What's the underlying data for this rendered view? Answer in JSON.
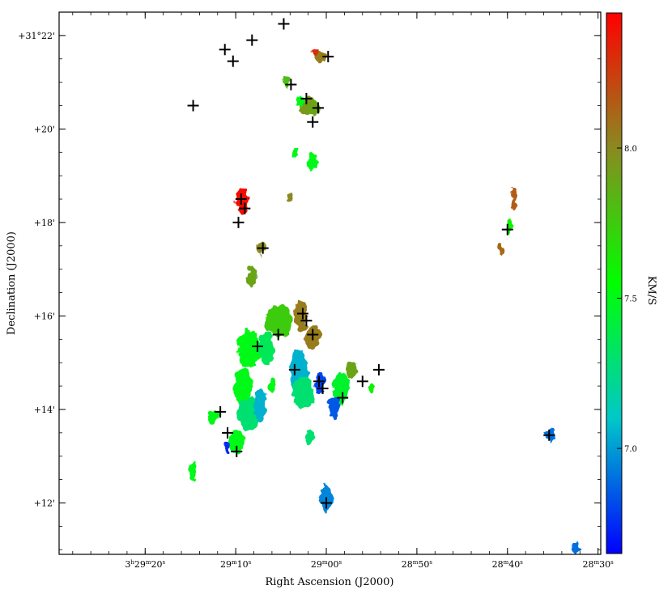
{
  "chart_data": {
    "type": "heatmap",
    "title": "",
    "xlabel": "Right Ascension (J2000)",
    "ylabel": "Declination (J2000)",
    "x_axis": {
      "ticks": [
        {
          "ra_s": 20,
          "parts": [
            [
              "3",
              "n"
            ],
            [
              "h",
              "s"
            ],
            [
              "29",
              "n"
            ],
            [
              "m",
              "s"
            ],
            [
              "20",
              "n"
            ],
            [
              "s",
              "s"
            ]
          ]
        },
        {
          "ra_s": 10,
          "parts": [
            [
              "29",
              "n"
            ],
            [
              "m",
              "s"
            ],
            [
              "10",
              "n"
            ],
            [
              "s",
              "s"
            ]
          ]
        },
        {
          "ra_s": 0,
          "parts": [
            [
              "29",
              "n"
            ],
            [
              "m",
              "s"
            ],
            [
              "00",
              "n"
            ],
            [
              "s",
              "s"
            ]
          ]
        },
        {
          "ra_s": -10,
          "parts": [
            [
              "28",
              "n"
            ],
            [
              "m",
              "s"
            ],
            [
              "50",
              "n"
            ],
            [
              "s",
              "s"
            ]
          ]
        },
        {
          "ra_s": -20,
          "parts": [
            [
              "28",
              "n"
            ],
            [
              "m",
              "s"
            ],
            [
              "40",
              "n"
            ],
            [
              "s",
              "s"
            ]
          ]
        },
        {
          "ra_s": -30,
          "parts": [
            [
              "28",
              "n"
            ],
            [
              "m",
              "s"
            ],
            [
              "30",
              "n"
            ],
            [
              "s",
              "s"
            ]
          ]
        }
      ],
      "range_ra_s": [
        29.5,
        -30.3
      ]
    },
    "y_axis": {
      "ticks": [
        {
          "dec_arcmin": 22,
          "label": "+31°22'"
        },
        {
          "dec_arcmin": 20,
          "label": "+20'"
        },
        {
          "dec_arcmin": 18,
          "label": "+18'"
        },
        {
          "dec_arcmin": 16,
          "label": "+16'"
        },
        {
          "dec_arcmin": 14,
          "label": "+14'"
        },
        {
          "dec_arcmin": 12,
          "label": "+12'"
        }
      ],
      "range_dec_arcmin": [
        10.9,
        22.5
      ]
    },
    "colorbar": {
      "label": "KM/S",
      "range": [
        6.65,
        8.45
      ],
      "ticks": [
        {
          "value": 8.0,
          "label": "8.0"
        },
        {
          "value": 7.5,
          "label": "7.5"
        },
        {
          "value": 7.0,
          "label": "7.0"
        }
      ],
      "colors": [
        "#0000ff",
        "#00c8c8",
        "#00ff00",
        "#8a8a20",
        "#ff0000"
      ]
    },
    "grid": false,
    "regions": [
      {
        "ra": 0.7,
        "dec": 21.55,
        "rx": 0.7,
        "ry": 0.12,
        "v": 8.05
      },
      {
        "ra": 1.2,
        "dec": 21.65,
        "rx": 0.4,
        "ry": 0.08,
        "v": 8.3
      },
      {
        "ra": 4.4,
        "dec": 21.0,
        "rx": 0.4,
        "ry": 0.15,
        "v": 7.8
      },
      {
        "ra": 2.2,
        "dec": 20.5,
        "rx": 0.9,
        "ry": 0.2,
        "v": 7.95
      },
      {
        "ra": 2.8,
        "dec": 20.6,
        "rx": 0.5,
        "ry": 0.12,
        "v": 7.5
      },
      {
        "ra": 1.4,
        "dec": 20.45,
        "rx": 0.7,
        "ry": 0.15,
        "v": 7.9
      },
      {
        "ra": 9.3,
        "dec": 18.45,
        "rx": 0.7,
        "ry": 0.28,
        "v": 8.4
      },
      {
        "ra": 4.0,
        "dec": 18.55,
        "rx": 0.3,
        "ry": 0.1,
        "v": 8.0
      },
      {
        "ra": 7.2,
        "dec": 17.45,
        "rx": 0.5,
        "ry": 0.15,
        "v": 8.0
      },
      {
        "ra": 8.2,
        "dec": 16.85,
        "rx": 0.5,
        "ry": 0.25,
        "v": 7.9
      },
      {
        "ra": 2.8,
        "dec": 16.0,
        "rx": 0.7,
        "ry": 0.35,
        "v": 8.05
      },
      {
        "ra": 1.5,
        "dec": 15.55,
        "rx": 0.9,
        "ry": 0.25,
        "v": 8.05
      },
      {
        "ra": 5.2,
        "dec": 15.9,
        "rx": 1.5,
        "ry": 0.35,
        "v": 7.75
      },
      {
        "ra": 8.6,
        "dec": 15.3,
        "rx": 1.3,
        "ry": 0.4,
        "v": 7.5
      },
      {
        "ra": 6.6,
        "dec": 15.3,
        "rx": 0.9,
        "ry": 0.35,
        "v": 7.35
      },
      {
        "ra": 9.2,
        "dec": 14.5,
        "rx": 1.0,
        "ry": 0.4,
        "v": 7.5
      },
      {
        "ra": 8.5,
        "dec": 13.9,
        "rx": 1.3,
        "ry": 0.35,
        "v": 7.3
      },
      {
        "ra": 9.9,
        "dec": 13.3,
        "rx": 0.9,
        "ry": 0.25,
        "v": 7.5
      },
      {
        "ra": 7.3,
        "dec": 14.1,
        "rx": 0.7,
        "ry": 0.35,
        "v": 7.05
      },
      {
        "ra": 3.0,
        "dec": 14.8,
        "rx": 1.0,
        "ry": 0.5,
        "v": 7.05
      },
      {
        "ra": 0.7,
        "dec": 14.55,
        "rx": 0.5,
        "ry": 0.25,
        "v": 6.8
      },
      {
        "ra": 2.5,
        "dec": 14.35,
        "rx": 1.2,
        "ry": 0.35,
        "v": 7.3
      },
      {
        "ra": 6.0,
        "dec": 14.5,
        "rx": 0.35,
        "ry": 0.15,
        "v": 7.5
      },
      {
        "ra": -1.6,
        "dec": 14.45,
        "rx": 0.9,
        "ry": 0.35,
        "v": 7.45
      },
      {
        "ra": -2.8,
        "dec": 14.85,
        "rx": 0.7,
        "ry": 0.2,
        "v": 7.9
      },
      {
        "ra": -0.9,
        "dec": 14.05,
        "rx": 0.6,
        "ry": 0.25,
        "v": 6.85
      },
      {
        "ra": 12.5,
        "dec": 13.85,
        "rx": 0.6,
        "ry": 0.15,
        "v": 7.5
      },
      {
        "ra": 11.0,
        "dec": 13.2,
        "rx": 0.4,
        "ry": 0.12,
        "v": 6.75
      },
      {
        "ra": 14.7,
        "dec": 12.7,
        "rx": 0.4,
        "ry": 0.2,
        "v": 7.5
      },
      {
        "ra": 1.8,
        "dec": 13.4,
        "rx": 0.5,
        "ry": 0.15,
        "v": 7.3
      },
      {
        "ra": 0.0,
        "dec": 12.1,
        "rx": 0.7,
        "ry": 0.3,
        "v": 6.95
      },
      {
        "ra": -5.0,
        "dec": 14.45,
        "rx": 0.4,
        "ry": 0.1,
        "v": 7.6
      },
      {
        "ra": -20.7,
        "dec": 18.5,
        "rx": 0.3,
        "ry": 0.25,
        "v": 8.15
      },
      {
        "ra": -20.2,
        "dec": 17.9,
        "rx": 0.3,
        "ry": 0.2,
        "v": 7.6
      },
      {
        "ra": -19.3,
        "dec": 17.45,
        "rx": 0.3,
        "ry": 0.12,
        "v": 8.1
      },
      {
        "ra": -24.8,
        "dec": 13.45,
        "rx": 0.6,
        "ry": 0.15,
        "v": 6.9
      },
      {
        "ra": -27.5,
        "dec": 11.05,
        "rx": 0.4,
        "ry": 0.12,
        "v": 6.9
      },
      {
        "ra": 1.5,
        "dec": 19.3,
        "rx": 0.6,
        "ry": 0.2,
        "v": 7.5
      },
      {
        "ra": 3.4,
        "dec": 19.5,
        "rx": 0.3,
        "ry": 0.1,
        "v": 7.5
      }
    ],
    "markers": [
      {
        "ra": 11.2,
        "dec": 21.7
      },
      {
        "ra": 10.3,
        "dec": 21.45
      },
      {
        "ra": 8.2,
        "dec": 21.9
      },
      {
        "ra": 4.7,
        "dec": 22.25
      },
      {
        "ra": -0.2,
        "dec": 21.55
      },
      {
        "ra": 14.7,
        "dec": 20.5
      },
      {
        "ra": 3.9,
        "dec": 20.95
      },
      {
        "ra": 2.2,
        "dec": 20.65
      },
      {
        "ra": 0.9,
        "dec": 20.45
      },
      {
        "ra": 1.5,
        "dec": 20.15
      },
      {
        "ra": 9.4,
        "dec": 18.5
      },
      {
        "ra": 9.0,
        "dec": 18.3
      },
      {
        "ra": 9.7,
        "dec": 18.0
      },
      {
        "ra": 7.0,
        "dec": 17.45
      },
      {
        "ra": 2.6,
        "dec": 16.05
      },
      {
        "ra": 2.2,
        "dec": 15.9
      },
      {
        "ra": 1.5,
        "dec": 15.6
      },
      {
        "ra": 5.3,
        "dec": 15.6
      },
      {
        "ra": 7.6,
        "dec": 15.35
      },
      {
        "ra": 3.5,
        "dec": 14.85
      },
      {
        "ra": 0.8,
        "dec": 14.6
      },
      {
        "ra": 0.4,
        "dec": 14.45
      },
      {
        "ra": -4.0,
        "dec": 14.6
      },
      {
        "ra": -1.8,
        "dec": 14.25
      },
      {
        "ra": -5.8,
        "dec": 14.85
      },
      {
        "ra": 11.7,
        "dec": 13.95
      },
      {
        "ra": 10.9,
        "dec": 13.5
      },
      {
        "ra": 9.9,
        "dec": 13.1
      },
      {
        "ra": 0.0,
        "dec": 12.0
      },
      {
        "ra": -20.0,
        "dec": 17.85
      },
      {
        "ra": -24.6,
        "dec": 13.45
      }
    ]
  }
}
